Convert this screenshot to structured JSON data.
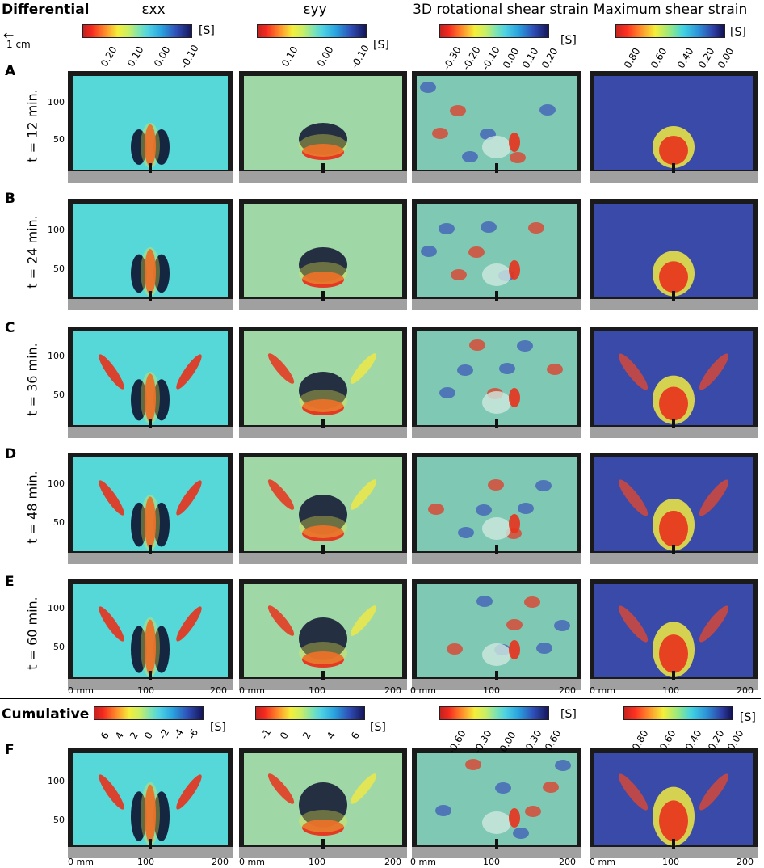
{
  "header": {
    "differential_title": "Differential",
    "cumulative_title": "Cumulative",
    "scale_label": "1 cm",
    "scale_arrow": "←"
  },
  "columns": [
    {
      "title": "εxx",
      "unit": "[S]",
      "ticks": [
        "0.20",
        "0.10",
        "0.00",
        "-0.10"
      ]
    },
    {
      "title": "εyy",
      "unit": "[S]",
      "ticks": [
        "0.10",
        "0.00",
        "-0.10"
      ]
    },
    {
      "title": "3D rotational shear strain",
      "unit": "[S]",
      "ticks": [
        "-0.30",
        "-0.20",
        "-0.10",
        "0.00",
        "0.10",
        "0.20"
      ]
    },
    {
      "title": "Maximum shear strain",
      "unit": "[S]",
      "ticks": [
        "0.80",
        "0.60",
        "0.40",
        "0.20",
        "0.00"
      ]
    }
  ],
  "cumulative_columns": [
    {
      "unit": "[S]",
      "ticks": [
        "6",
        "4",
        "2",
        "0",
        "-2",
        "-4",
        "-6"
      ]
    },
    {
      "unit": "[S]",
      "ticks": [
        "-1",
        "0",
        "2",
        "4",
        "6"
      ]
    },
    {
      "unit": "[S]",
      "ticks": [
        "-0.60",
        "-0.30",
        "0.00",
        "0.30",
        "0.60"
      ]
    },
    {
      "unit": "[S]",
      "ticks": [
        "0.80",
        "0.60",
        "0.40",
        "0.20",
        "0.00"
      ]
    }
  ],
  "rows": [
    {
      "letter": "A",
      "time": "t = 12 min."
    },
    {
      "letter": "B",
      "time": "t = 24 min."
    },
    {
      "letter": "C",
      "time": "t = 36 min."
    },
    {
      "letter": "D",
      "time": "t = 48 min."
    },
    {
      "letter": "E",
      "time": "t = 60 min."
    },
    {
      "letter": "F",
      "time": ""
    }
  ],
  "axes": {
    "y_ticks": [
      "100",
      "50"
    ],
    "x_ticks": [
      "0 mm",
      "100",
      "200"
    ]
  },
  "colors": {
    "cyan_bg": "#57d8d8",
    "greenish_bg": "#9fd8a6",
    "blue_bg": "#3a4aa8",
    "red": "#e8321c",
    "yellow": "#f2ea42",
    "dark": "#0e1330"
  }
}
